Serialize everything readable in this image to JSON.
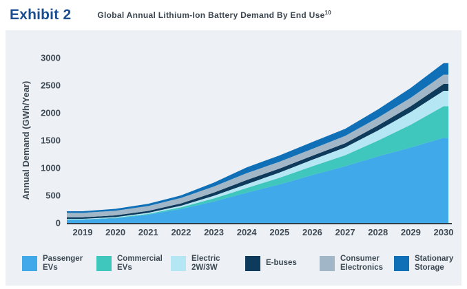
{
  "header": {
    "exhibit_label": "Exhibit 2",
    "title": "Global Annual Lithium-Ion Battery Demand By End Use",
    "footnote_marker": "10"
  },
  "colors": {
    "panel_bg": "#EDF1F6",
    "axis_line": "#333F48",
    "tick_text": "#3E4953",
    "exhibit_blue": "#1B4E91",
    "subtitle_text": "#39444E",
    "legend_text": "#3C4852"
  },
  "chart_data": {
    "type": "area",
    "stacked": true,
    "title": "Global Annual Lithium-Ion Battery Demand By End Use",
    "xlabel": "",
    "ylabel": "Annual Demand (GWh/Year)",
    "categories": [
      "2019",
      "2020",
      "2021",
      "2022",
      "2023",
      "2024",
      "2025",
      "2026",
      "2027",
      "2028",
      "2029",
      "2030"
    ],
    "ylim": [
      0,
      3000
    ],
    "yticks": [
      0,
      500,
      1000,
      1500,
      2000,
      2500,
      3000
    ],
    "grid": false,
    "legend_position": "bottom",
    "series": [
      {
        "name": "Passenger EVs",
        "color": "#3FA9E9",
        "values": [
          60,
          85,
          150,
          255,
          390,
          550,
          700,
          870,
          1030,
          1210,
          1370,
          1545
        ]
      },
      {
        "name": "Commercial EVs",
        "color": "#3FC7BE",
        "values": [
          5,
          8,
          14,
          30,
          55,
          85,
          120,
          160,
          200,
          285,
          415,
          575
        ]
      },
      {
        "name": "Electric 2W/3W",
        "color": "#B5E6F3",
        "values": [
          10,
          14,
          20,
          28,
          48,
          70,
          95,
          118,
          142,
          185,
          230,
          280
        ]
      },
      {
        "name": "E-buses",
        "color": "#0E3A5C",
        "values": [
          28,
          30,
          34,
          42,
          58,
          75,
          72,
          72,
          75,
          90,
          105,
          125
        ]
      },
      {
        "name": "Consumer Electronics",
        "color": "#A1B6C6",
        "values": [
          80,
          85,
          90,
          100,
          112,
          125,
          125,
          126,
          134,
          142,
          155,
          168
        ]
      },
      {
        "name": "Stationary Storage",
        "color": "#0F70B7",
        "values": [
          30,
          34,
          40,
          46,
          70,
          105,
          115,
          125,
          128,
          150,
          178,
          210
        ]
      }
    ]
  },
  "legend": {
    "items": [
      {
        "label_lines": [
          "Passenger",
          "EVs"
        ],
        "color": "#3FA9E9"
      },
      {
        "label_lines": [
          "Commercial",
          "EVs"
        ],
        "color": "#3FC7BE"
      },
      {
        "label_lines": [
          "Electric",
          "2W/3W"
        ],
        "color": "#B5E6F3"
      },
      {
        "label_lines": [
          "E-buses"
        ],
        "color": "#0E3A5C"
      },
      {
        "label_lines": [
          "Consumer",
          "Electronics"
        ],
        "color": "#A1B6C6"
      },
      {
        "label_lines": [
          "Stationary",
          "Storage"
        ],
        "color": "#0F70B7"
      }
    ]
  }
}
